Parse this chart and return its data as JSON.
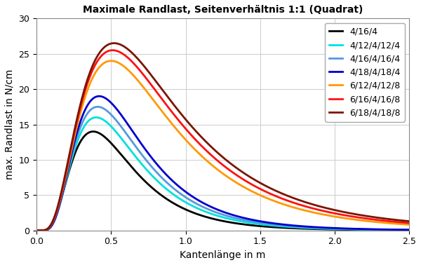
{
  "title": "Maximale Randlast, Seitenverhältnis 1:1 (Quadrat)",
  "xlabel": "Kantenlänge in m",
  "ylabel": "max. Randlast in N/cm",
  "xlim": [
    0.0,
    2.5
  ],
  "ylim": [
    0,
    30
  ],
  "xticks": [
    0.0,
    0.5,
    1.0,
    1.5,
    2.0,
    2.5
  ],
  "yticks": [
    0,
    5,
    10,
    15,
    20,
    25,
    30
  ],
  "series": [
    {
      "label": "4/16/4",
      "color": "#000000",
      "linewidth": 2.0,
      "peak": 14.0,
      "peak_x": 0.38,
      "sigma": 0.55
    },
    {
      "label": "4/12/4/12/4",
      "color": "#00e0e0",
      "linewidth": 2.0,
      "peak": 16.0,
      "peak_x": 0.4,
      "sigma": 0.55
    },
    {
      "label": "4/16/4/16/4",
      "color": "#5599dd",
      "linewidth": 2.0,
      "peak": 17.5,
      "peak_x": 0.41,
      "sigma": 0.55
    },
    {
      "label": "4/18/4/18/4",
      "color": "#0000cc",
      "linewidth": 2.0,
      "peak": 19.0,
      "peak_x": 0.42,
      "sigma": 0.55
    },
    {
      "label": "6/12/4/12/8",
      "color": "#ff9900",
      "linewidth": 2.0,
      "peak": 24.0,
      "peak_x": 0.5,
      "sigma": 0.62
    },
    {
      "label": "6/16/4/16/8",
      "color": "#ff1111",
      "linewidth": 2.0,
      "peak": 25.5,
      "peak_x": 0.51,
      "sigma": 0.63
    },
    {
      "label": "6/18/4/18/8",
      "color": "#7a1500",
      "linewidth": 2.0,
      "peak": 26.5,
      "peak_x": 0.52,
      "sigma": 0.64
    }
  ],
  "background_color": "#ffffff",
  "grid_color": "#cccccc",
  "title_fontsize": 10,
  "label_fontsize": 10,
  "tick_fontsize": 9,
  "legend_fontsize": 9
}
